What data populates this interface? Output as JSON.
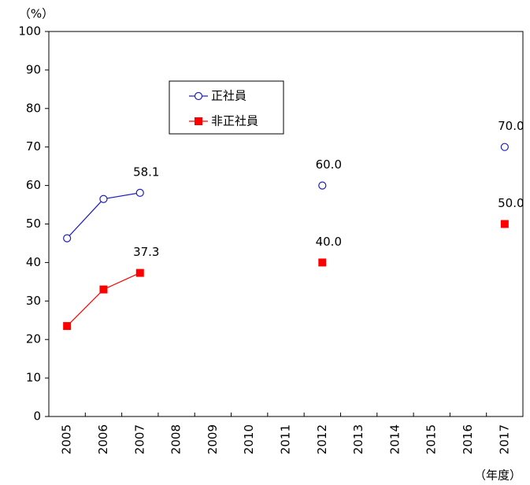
{
  "chart_data": {
    "type": "line",
    "y_label": "（%）",
    "x_label": "（年度）",
    "categories": [
      "2005",
      "2006",
      "2007",
      "2008",
      "2009",
      "2010",
      "2011",
      "2012",
      "2013",
      "2014",
      "2015",
      "2016",
      "2017"
    ],
    "series": [
      {
        "name": "正社員",
        "color": "#1f1fbf",
        "marker": "circle",
        "values": [
          46.3,
          56.5,
          58.1,
          null,
          null,
          null,
          null,
          60.0,
          null,
          null,
          null,
          null,
          70.0
        ],
        "value_labels": [
          null,
          null,
          "58.1",
          null,
          null,
          null,
          null,
          "60.0",
          null,
          null,
          null,
          null,
          "70.0"
        ]
      },
      {
        "name": "非正社員",
        "color": "#ff0000",
        "marker": "square",
        "values": [
          23.5,
          33.0,
          37.3,
          null,
          null,
          null,
          null,
          40.0,
          null,
          null,
          null,
          null,
          50.0
        ],
        "value_labels": [
          null,
          null,
          "37.3",
          null,
          null,
          null,
          null,
          "40.0",
          null,
          null,
          null,
          null,
          "50.0"
        ]
      }
    ],
    "ylim": [
      0,
      100
    ],
    "yticks": [
      0,
      10,
      20,
      30,
      40,
      50,
      60,
      70,
      80,
      90,
      100
    ],
    "grid": false
  }
}
